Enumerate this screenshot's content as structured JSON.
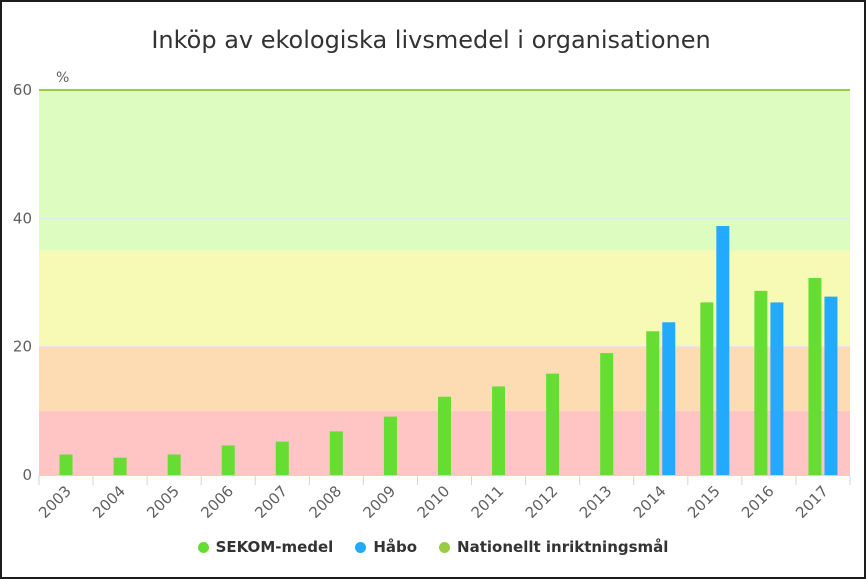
{
  "chart_data": {
    "type": "bar",
    "title": "Inköp av ekologiska livsmedel i organisationen",
    "ylabel": "%",
    "ylim": [
      0,
      60
    ],
    "yticks": [
      "0",
      "20",
      "40",
      "60"
    ],
    "categories": [
      "2003",
      "2004",
      "2005",
      "2006",
      "2007",
      "2008",
      "2009",
      "2010",
      "2011",
      "2012",
      "2013",
      "2014",
      "2015",
      "2016",
      "2017"
    ],
    "series": [
      {
        "name": "SEKOM-medel",
        "color": "#66dd33",
        "values": [
          3.2,
          2.7,
          3.2,
          4.6,
          5.2,
          6.8,
          9.1,
          12.2,
          13.8,
          15.8,
          19.0,
          22.4,
          26.9,
          28.7,
          30.7
        ]
      },
      {
        "name": "Håbo",
        "color": "#22aaff",
        "values": [
          null,
          null,
          null,
          null,
          null,
          null,
          null,
          null,
          null,
          null,
          null,
          23.8,
          38.8,
          26.9,
          27.8
        ]
      },
      {
        "name": "Nationellt inriktningsmål",
        "color": "#99cc44",
        "values": [
          60,
          60,
          60,
          60,
          60,
          60,
          60,
          60,
          60,
          60,
          60,
          60,
          60,
          60,
          60
        ]
      }
    ],
    "bands": [
      {
        "from": 0,
        "to": 10,
        "color": "#ffc4c4"
      },
      {
        "from": 10,
        "to": 20,
        "color": "#fddcb4"
      },
      {
        "from": 20,
        "to": 35,
        "color": "#f7fab4"
      },
      {
        "from": 35,
        "to": 60,
        "color": "#dcfcc0"
      }
    ]
  }
}
